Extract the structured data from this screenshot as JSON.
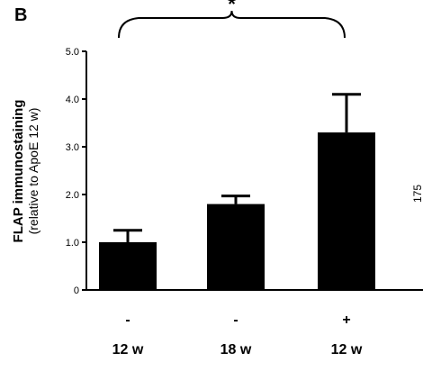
{
  "panel_label": "B",
  "chart_data": {
    "type": "bar",
    "title": "",
    "ylabel_line1": "FLAP immunostaining",
    "ylabel_line2": "(relative to ApoE 12 w)",
    "ylim": [
      0,
      5.0
    ],
    "yticks": [
      "0",
      "1.0",
      "2.0",
      "3.0",
      "4.0",
      "5.0"
    ],
    "categories": [
      {
        "treatment": "-",
        "age": "12 w"
      },
      {
        "treatment": "-",
        "age": "18 w"
      },
      {
        "treatment": "+",
        "age": "12 w"
      }
    ],
    "values": [
      1.0,
      1.8,
      3.3
    ],
    "errors": [
      0.25,
      0.17,
      0.8
    ],
    "bar_color": "#000000",
    "significance": {
      "label": "*",
      "between": [
        0,
        2
      ]
    },
    "edge_fragment": "175"
  }
}
